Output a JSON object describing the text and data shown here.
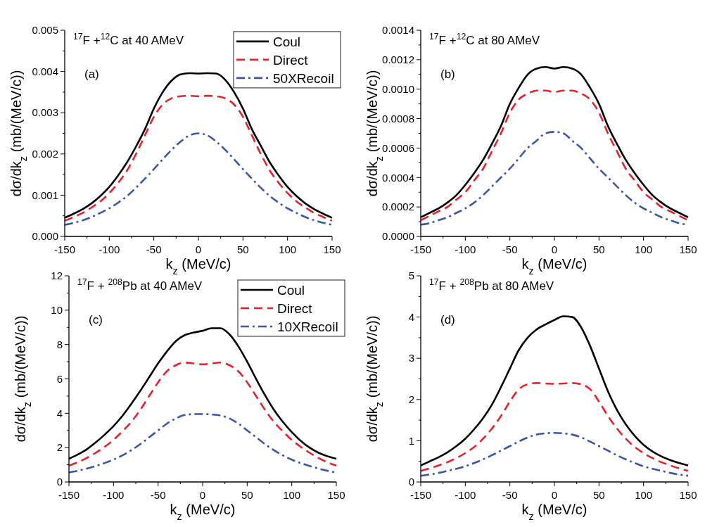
{
  "chart_data": [
    {
      "type": "line",
      "title": "$^{17}$F +$^{12}$C at 40 AMeV",
      "annotations": [
        "(a)"
      ],
      "xlabel": "k$_{z}$ (MeV/c)",
      "ylabel": "dσ/dk$_{z}$ (mb/(MeV/c))",
      "x": [
        -150,
        -140,
        -130,
        -120,
        -110,
        -100,
        -90,
        -80,
        -70,
        -60,
        -50,
        -40,
        -30,
        -20,
        -10,
        0,
        10,
        20,
        30,
        40,
        50,
        60,
        70,
        80,
        90,
        100,
        110,
        120,
        130,
        140,
        150
      ],
      "xlim": [
        -150,
        150
      ],
      "xticks": [
        -150,
        {
          "value": -125,
          "label": null
        },
        -100,
        {
          "value": -75,
          "label": null
        },
        -50,
        {
          "value": -25,
          "label": null
        },
        0,
        {
          "value": 25,
          "label": null
        },
        50,
        {
          "value": 75,
          "label": null
        },
        100,
        {
          "value": 125,
          "label": null
        },
        150
      ],
      "ylim": [
        0,
        0.005
      ],
      "yticks": [
        {
          "value": 0,
          "label": "0.000"
        },
        {
          "value": 0.0005,
          "label": null
        },
        {
          "value": 0.001,
          "label": "0.001"
        },
        {
          "value": 0.0015,
          "label": null
        },
        {
          "value": 0.002,
          "label": "0.002"
        },
        {
          "value": 0.0025,
          "label": null
        },
        {
          "value": 0.003,
          "label": "0.003"
        },
        {
          "value": 0.0035,
          "label": null
        },
        {
          "value": 0.004,
          "label": "0.004"
        },
        {
          "value": 0.0045,
          "label": null
        },
        {
          "value": 0.005,
          "label": "0.005"
        }
      ],
      "legend": "top right",
      "grid": false,
      "series": [
        {
          "name": "Coul",
          "color": "#000000",
          "line_style": "solid",
          "values": [
            0.00045,
            0.00055,
            0.00066,
            0.0008,
            0.00098,
            0.0012,
            0.00148,
            0.0018,
            0.00218,
            0.0026,
            0.0031,
            0.0035,
            0.00378,
            0.00393,
            0.00396,
            0.00395,
            0.00396,
            0.00395,
            0.0038,
            0.0035,
            0.0031,
            0.0026,
            0.0022,
            0.0018,
            0.00148,
            0.0012,
            0.00098,
            0.0008,
            0.00066,
            0.00055,
            0.00045
          ]
        },
        {
          "name": "Direct",
          "color": "#e8212a",
          "line_style": "dashed",
          "values": [
            0.00038,
            0.00047,
            0.00057,
            0.0007,
            0.00085,
            0.00105,
            0.0013,
            0.0016,
            0.002,
            0.00245,
            0.0029,
            0.0032,
            0.00335,
            0.0034,
            0.00341,
            0.0034,
            0.00341,
            0.0034,
            0.00335,
            0.0032,
            0.0029,
            0.00245,
            0.002,
            0.0016,
            0.0013,
            0.00105,
            0.00085,
            0.0007,
            0.00057,
            0.00047,
            0.00038
          ]
        },
        {
          "name": "50XRecoil",
          "color": "#3a56a8",
          "line_style": "dashdot",
          "values": [
            0.00028,
            0.00033,
            0.00039,
            0.00047,
            0.00057,
            0.00068,
            0.00082,
            0.00098,
            0.00118,
            0.0014,
            0.00163,
            0.00187,
            0.0021,
            0.0023,
            0.00245,
            0.0025,
            0.00245,
            0.0023,
            0.0021,
            0.00187,
            0.00163,
            0.0014,
            0.00118,
            0.00098,
            0.00082,
            0.00068,
            0.00057,
            0.00047,
            0.00039,
            0.00033,
            0.00028
          ]
        }
      ]
    },
    {
      "type": "line",
      "title": "$^{17}$F +$^{12}$C at 80 AMeV",
      "annotations": [
        "(b)"
      ],
      "xlabel": "k$_{z}$ (MeV/c)",
      "ylabel": "dσ/dk$_{z}$ (mb/(MeV/c))",
      "x": [
        -150,
        -140,
        -130,
        -120,
        -110,
        -100,
        -90,
        -80,
        -70,
        -60,
        -50,
        -40,
        -30,
        -20,
        -10,
        0,
        10,
        20,
        30,
        40,
        50,
        60,
        70,
        80,
        90,
        100,
        110,
        120,
        130,
        140,
        150
      ],
      "xlim": [
        -150,
        150
      ],
      "xticks": [
        -150,
        {
          "value": -125,
          "label": null
        },
        -100,
        {
          "value": -75,
          "label": null
        },
        -50,
        {
          "value": -25,
          "label": null
        },
        0,
        {
          "value": 25,
          "label": null
        },
        50,
        {
          "value": 75,
          "label": null
        },
        100,
        {
          "value": 125,
          "label": null
        },
        150
      ],
      "ylim": [
        0,
        0.0014
      ],
      "yticks": [
        {
          "value": 0,
          "label": "0.0000"
        },
        {
          "value": 0.0001,
          "label": null
        },
        {
          "value": 0.0002,
          "label": "0.0002"
        },
        {
          "value": 0.0003,
          "label": null
        },
        {
          "value": 0.0004,
          "label": "0.0004"
        },
        {
          "value": 0.0005,
          "label": null
        },
        {
          "value": 0.0006,
          "label": "0.0006"
        },
        {
          "value": 0.0007,
          "label": null
        },
        {
          "value": 0.0008,
          "label": "0.0008"
        },
        {
          "value": 0.0009,
          "label": null
        },
        {
          "value": 0.001,
          "label": "0.0010"
        },
        {
          "value": 0.0011,
          "label": null
        },
        {
          "value": 0.0012,
          "label": "0.0012"
        },
        {
          "value": 0.0013,
          "label": null
        },
        {
          "value": 0.0014,
          "label": "0.0014"
        }
      ],
      "legend": false,
      "grid": false,
      "series": [
        {
          "color": "#000000",
          "line_style": "solid",
          "values": [
            0.00013,
            0.00016,
            0.00019,
            0.00023,
            0.00028,
            0.00035,
            0.00043,
            0.00052,
            0.00063,
            0.00075,
            0.0009,
            0.00101,
            0.0011,
            0.00114,
            0.00115,
            0.00114,
            0.00115,
            0.00114,
            0.0011,
            0.00101,
            0.0009,
            0.00075,
            0.00063,
            0.00052,
            0.00043,
            0.00035,
            0.00028,
            0.00023,
            0.00019,
            0.00016,
            0.00013
          ]
        },
        {
          "color": "#e8212a",
          "line_style": "dashed",
          "values": [
            0.00011,
            0.00014,
            0.00017,
            0.0002,
            0.00025,
            0.0003,
            0.00038,
            0.00046,
            0.00058,
            0.0007,
            0.00084,
            0.00093,
            0.00097,
            0.00099,
            0.00099,
            0.00098,
            0.00099,
            0.00099,
            0.00097,
            0.00093,
            0.00084,
            0.0007,
            0.00058,
            0.00046,
            0.00038,
            0.0003,
            0.00025,
            0.0002,
            0.00017,
            0.00014,
            0.00011
          ]
        },
        {
          "color": "#3a56a8",
          "line_style": "dashdot",
          "values": [
            8e-05,
            9e-05,
            0.00011,
            0.00013,
            0.00016,
            0.00019,
            0.00023,
            0.00028,
            0.00034,
            0.0004,
            0.00046,
            0.00053,
            0.0006,
            0.00065,
            0.0007,
            0.00071,
            0.0007,
            0.00065,
            0.0006,
            0.00053,
            0.00046,
            0.0004,
            0.00034,
            0.00028,
            0.00023,
            0.00019,
            0.00016,
            0.00013,
            0.00011,
            9e-05,
            8e-05
          ]
        }
      ]
    },
    {
      "type": "line",
      "title": "$^{17}$F + $^{208}$Pb at 40 AMeV",
      "annotations": [
        "(c)"
      ],
      "xlabel": "k$_{z}$ (MeV/c)",
      "ylabel": "dσ/dk$_{z}$ (mb/(MeV/c))",
      "x": [
        -150,
        -140,
        -130,
        -120,
        -110,
        -100,
        -90,
        -80,
        -70,
        -60,
        -50,
        -40,
        -30,
        -20,
        -10,
        0,
        10,
        20,
        30,
        40,
        50,
        60,
        70,
        80,
        90,
        100,
        110,
        120,
        130,
        140,
        150
      ],
      "xlim": [
        -150,
        150
      ],
      "xticks": [
        -150,
        {
          "value": -125,
          "label": null
        },
        -100,
        {
          "value": -75,
          "label": null
        },
        -50,
        {
          "value": -25,
          "label": null
        },
        0,
        {
          "value": 25,
          "label": null
        },
        50,
        {
          "value": 75,
          "label": null
        },
        100,
        {
          "value": 125,
          "label": null
        },
        150
      ],
      "ylim": [
        0,
        12
      ],
      "yticks": [
        0,
        {
          "value": 1,
          "label": null
        },
        2,
        {
          "value": 3,
          "label": null
        },
        4,
        {
          "value": 5,
          "label": null
        },
        6,
        {
          "value": 7,
          "label": null
        },
        8,
        {
          "value": 9,
          "label": null
        },
        10,
        {
          "value": 11,
          "label": null
        },
        12
      ],
      "legend": "top right",
      "grid": false,
      "series": [
        {
          "name": "Coul",
          "color": "#000000",
          "line_style": "solid",
          "values": [
            1.35,
            1.6,
            1.9,
            2.3,
            2.75,
            3.25,
            3.85,
            4.55,
            5.3,
            6.1,
            6.9,
            7.6,
            8.2,
            8.55,
            8.7,
            8.8,
            8.95,
            8.95,
            8.6,
            7.9,
            7.0,
            6.0,
            5.05,
            4.2,
            3.5,
            2.9,
            2.4,
            2.0,
            1.7,
            1.5,
            1.35
          ]
        },
        {
          "name": "Direct",
          "color": "#e8212a",
          "line_style": "dashed",
          "values": [
            0.95,
            1.15,
            1.4,
            1.7,
            2.05,
            2.45,
            2.95,
            3.5,
            4.2,
            5.0,
            5.8,
            6.45,
            6.8,
            6.95,
            6.9,
            6.85,
            6.9,
            6.95,
            6.8,
            6.45,
            5.8,
            5.0,
            4.2,
            3.5,
            2.95,
            2.45,
            2.05,
            1.7,
            1.4,
            1.15,
            0.95
          ]
        },
        {
          "name": "10XRecoil",
          "color": "#3a56a8",
          "line_style": "dashdot",
          "values": [
            0.55,
            0.65,
            0.78,
            0.93,
            1.1,
            1.3,
            1.55,
            1.85,
            2.2,
            2.6,
            3.0,
            3.4,
            3.7,
            3.9,
            3.95,
            3.95,
            3.93,
            3.87,
            3.7,
            3.4,
            3.0,
            2.6,
            2.2,
            1.85,
            1.55,
            1.3,
            1.1,
            0.93,
            0.78,
            0.65,
            0.55
          ]
        }
      ]
    },
    {
      "type": "line",
      "title": "$^{17}$F + $^{208}$Pb at 80 AMeV",
      "annotations": [
        "(d)"
      ],
      "xlabel": "k$_{z}$ (MeV/c)",
      "ylabel": "dσ/dk$_{z}$ (mb/(MeV/c))",
      "x": [
        -150,
        -140,
        -130,
        -120,
        -110,
        -100,
        -90,
        -80,
        -70,
        -60,
        -50,
        -40,
        -30,
        -20,
        -10,
        0,
        10,
        20,
        30,
        40,
        50,
        60,
        70,
        80,
        90,
        100,
        110,
        120,
        130,
        140,
        150
      ],
      "xlim": [
        -150,
        150
      ],
      "xticks": [
        -150,
        {
          "value": -125,
          "label": null
        },
        -100,
        {
          "value": -75,
          "label": null
        },
        -50,
        {
          "value": -25,
          "label": null
        },
        0,
        {
          "value": 25,
          "label": null
        },
        50,
        {
          "value": 75,
          "label": null
        },
        100,
        {
          "value": 125,
          "label": null
        },
        150
      ],
      "ylim": [
        0,
        5
      ],
      "yticks": [
        0,
        {
          "value": 0.5,
          "label": null
        },
        1,
        {
          "value": 1.5,
          "label": null
        },
        2,
        {
          "value": 2.5,
          "label": null
        },
        3,
        {
          "value": 3.5,
          "label": null
        },
        4,
        {
          "value": 4.5,
          "label": null
        },
        5
      ],
      "legend": false,
      "grid": false,
      "series": [
        {
          "color": "#000000",
          "line_style": "solid",
          "values": [
            0.4,
            0.5,
            0.6,
            0.72,
            0.87,
            1.05,
            1.28,
            1.55,
            1.88,
            2.3,
            2.75,
            3.2,
            3.5,
            3.7,
            3.82,
            3.93,
            4.02,
            4.0,
            3.75,
            3.3,
            2.75,
            2.2,
            1.75,
            1.4,
            1.12,
            0.9,
            0.74,
            0.62,
            0.53,
            0.46,
            0.4
          ]
        },
        {
          "color": "#e8212a",
          "line_style": "dashed",
          "values": [
            0.27,
            0.33,
            0.4,
            0.48,
            0.58,
            0.7,
            0.85,
            1.05,
            1.3,
            1.6,
            1.95,
            2.25,
            2.37,
            2.4,
            2.39,
            2.38,
            2.39,
            2.4,
            2.37,
            2.25,
            1.95,
            1.6,
            1.3,
            1.05,
            0.85,
            0.7,
            0.58,
            0.48,
            0.4,
            0.33,
            0.27
          ]
        },
        {
          "color": "#3a56a8",
          "line_style": "dashdot",
          "values": [
            0.15,
            0.18,
            0.22,
            0.27,
            0.32,
            0.38,
            0.46,
            0.55,
            0.65,
            0.76,
            0.87,
            0.98,
            1.08,
            1.15,
            1.18,
            1.19,
            1.18,
            1.15,
            1.08,
            0.98,
            0.87,
            0.76,
            0.65,
            0.55,
            0.46,
            0.38,
            0.32,
            0.27,
            0.22,
            0.18,
            0.15
          ]
        }
      ]
    }
  ]
}
